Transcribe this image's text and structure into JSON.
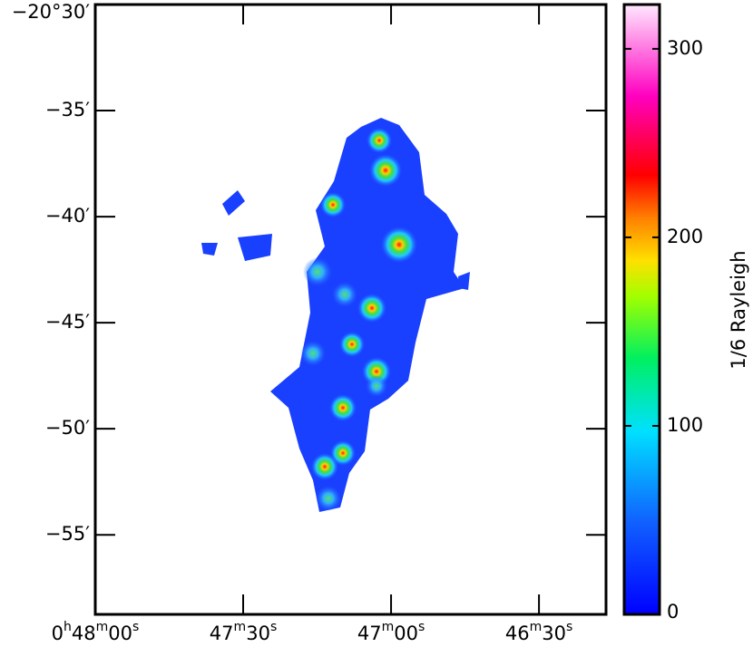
{
  "chart_data": {
    "type": "image",
    "xlim": [
      120,
      16.4
    ],
    "xticks": [
      {
        "value": 120,
        "label": "0h48m00s"
      },
      {
        "value": 90,
        "label": "47m30s"
      },
      {
        "value": 60,
        "label": "47m00s"
      },
      {
        "value": 30,
        "label": "46m30s"
      }
    ],
    "ylim": [
      -58.75,
      -30
    ],
    "yticks": [
      {
        "value": -30,
        "label": "−20°30′"
      },
      {
        "value": -35,
        "label": "−35′"
      },
      {
        "value": -40,
        "label": "−40′"
      },
      {
        "value": -45,
        "label": "−45′"
      },
      {
        "value": -50,
        "label": "−50′"
      },
      {
        "value": -55,
        "label": "−55′"
      }
    ],
    "colorbar": {
      "label": "1/6 Rayleigh",
      "lim": [
        0,
        323.5
      ],
      "ticks": [
        0,
        100,
        200,
        300
      ]
    }
  }
}
